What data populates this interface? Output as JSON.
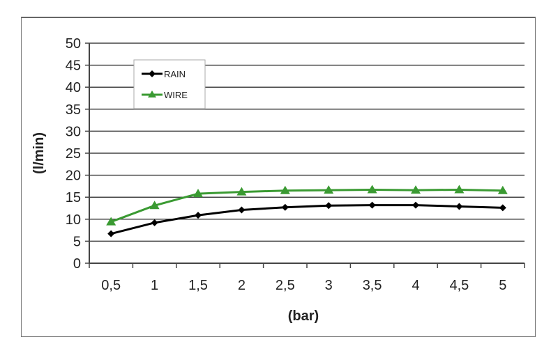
{
  "chart_data": {
    "type": "line",
    "title": "",
    "xlabel": "(bar)",
    "ylabel": "(l/min)",
    "categories": [
      "0,5",
      "1",
      "1,5",
      "2",
      "2,5",
      "3",
      "3,5",
      "4",
      "4,5",
      "5"
    ],
    "ylim": [
      0,
      50
    ],
    "yticks": [
      "0",
      "5",
      "10",
      "15",
      "20",
      "25",
      "30",
      "35",
      "40",
      "45",
      "50"
    ],
    "grid": true,
    "legend_position": "top-left",
    "series": [
      {
        "name": "RAIN",
        "color": "#000000",
        "marker": "diamond",
        "values": [
          6.7,
          9.2,
          10.9,
          12.1,
          12.7,
          13.1,
          13.2,
          13.2,
          12.9,
          12.6
        ]
      },
      {
        "name": "WIRE",
        "color": "#3a9a32",
        "marker": "triangle",
        "values": [
          9.4,
          13.1,
          15.8,
          16.2,
          16.5,
          16.6,
          16.7,
          16.6,
          16.7,
          16.5
        ]
      }
    ]
  }
}
